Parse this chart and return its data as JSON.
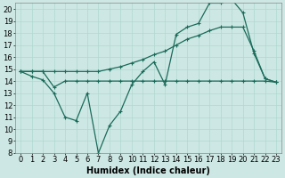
{
  "xlabel": "Humidex (Indice chaleur)",
  "bg_color": "#cde8e4",
  "grid_color": "#b0d8d0",
  "line_color": "#1a6b5a",
  "xlim": [
    -0.5,
    23.5
  ],
  "ylim": [
    8,
    20.5
  ],
  "yticks": [
    8,
    9,
    10,
    11,
    12,
    13,
    14,
    15,
    16,
    17,
    18,
    19,
    20
  ],
  "xticks": [
    0,
    1,
    2,
    3,
    4,
    5,
    6,
    7,
    8,
    9,
    10,
    11,
    12,
    13,
    14,
    15,
    16,
    17,
    18,
    19,
    20,
    21,
    22,
    23
  ],
  "line1_x": [
    0,
    1,
    2,
    3,
    4,
    5,
    6,
    7,
    8,
    9,
    10,
    11,
    12,
    13,
    14,
    15,
    16,
    17,
    18,
    19,
    20,
    21,
    22,
    23
  ],
  "line1_y": [
    14.8,
    14.4,
    14.1,
    13.0,
    11.0,
    10.7,
    13.0,
    8.0,
    10.3,
    11.5,
    13.7,
    14.8,
    15.6,
    13.7,
    17.9,
    18.5,
    18.8,
    20.5,
    20.5,
    20.8,
    19.7,
    16.3,
    14.2,
    13.9
  ],
  "line2_x": [
    0,
    1,
    2,
    3,
    4,
    5,
    6,
    7,
    8,
    9,
    10,
    11,
    12,
    13,
    14,
    15,
    16,
    17,
    18,
    19,
    20,
    21,
    22,
    23
  ],
  "line2_y": [
    14.8,
    14.8,
    14.8,
    14.8,
    14.8,
    14.8,
    14.8,
    14.8,
    15.0,
    15.2,
    15.5,
    15.8,
    16.2,
    16.5,
    17.0,
    17.5,
    17.8,
    18.2,
    18.5,
    18.5,
    18.5,
    16.5,
    14.2,
    13.9
  ],
  "line3_x": [
    0,
    1,
    2,
    3,
    4,
    5,
    6,
    7,
    8,
    9,
    10,
    11,
    12,
    13,
    14,
    15,
    16,
    17,
    18,
    19,
    20,
    21,
    22,
    23
  ],
  "line3_y": [
    14.8,
    14.8,
    14.8,
    13.5,
    14.0,
    14.0,
    14.0,
    14.0,
    14.0,
    14.0,
    14.0,
    14.0,
    14.0,
    14.0,
    14.0,
    14.0,
    14.0,
    14.0,
    14.0,
    14.0,
    14.0,
    14.0,
    14.0,
    13.9
  ],
  "xlabel_fontsize": 7,
  "tick_fontsize": 6,
  "linewidth": 0.9,
  "markersize": 2.5
}
